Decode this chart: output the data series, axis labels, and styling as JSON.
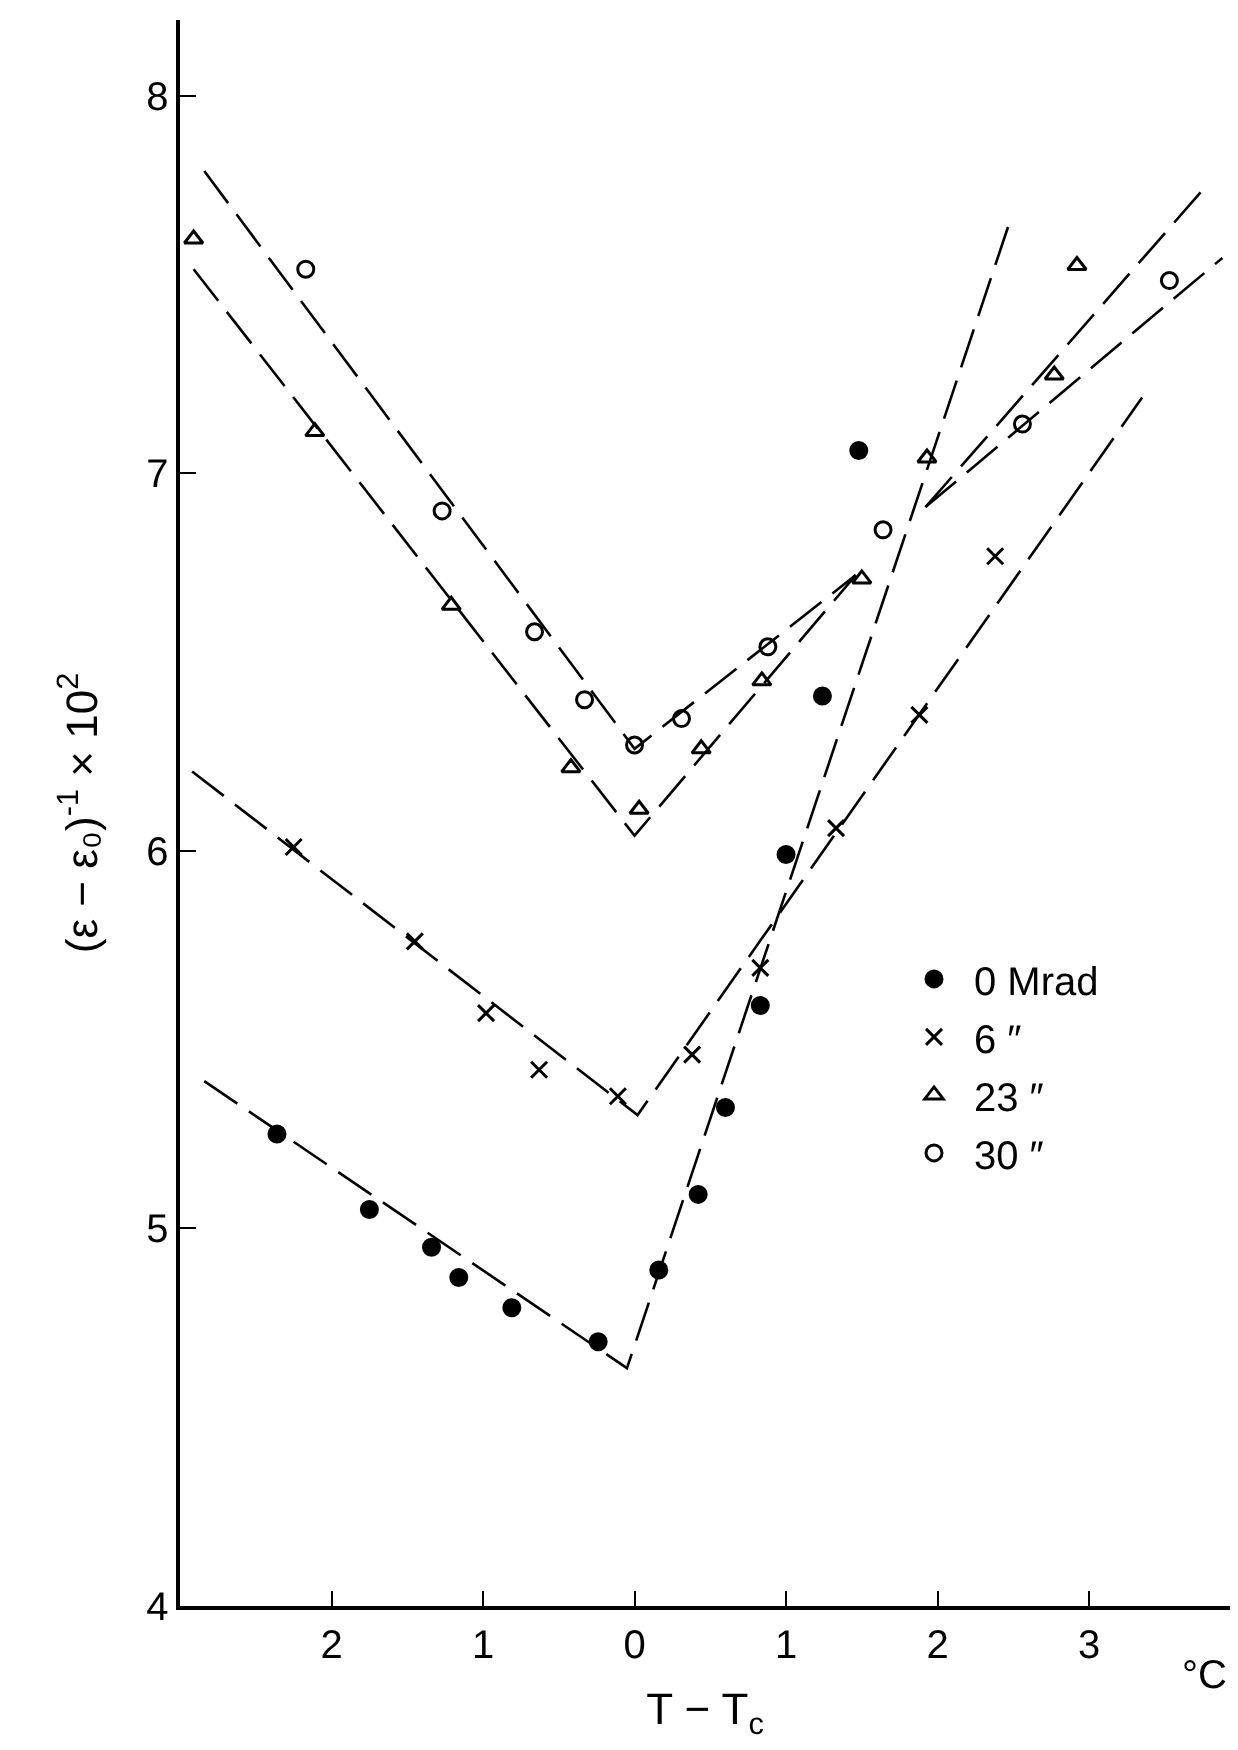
{
  "chart_data": {
    "type": "scatter",
    "xlabel": "T − T$_{c}$",
    "ylabel": "(ε − ε₀)$^{-1}$ × 10$^{2}$",
    "xlim": [
      -3.0,
      3.93
    ],
    "xticks": [
      {
        "value": -2,
        "label": "2"
      },
      {
        "value": -1,
        "label": "1"
      },
      0,
      1,
      2,
      3
    ],
    "ylim": [
      4,
      8.2
    ],
    "yticks": [
      4,
      5,
      6,
      7,
      8
    ],
    "grid": false,
    "legend": "right",
    "line_style": "dashed",
    "annotations": [
      "°C"
    ],
    "series": [
      {
        "name": "0 Mrad",
        "color": "#000000",
        "marker": "circle",
        "x": [
          -2.36,
          -1.75,
          -1.34,
          -1.16,
          -0.81,
          -0.24,
          0.16,
          0.42,
          0.6,
          0.83,
          1.0,
          1.24,
          1.48
        ],
        "values": [
          5.25,
          5.05,
          4.95,
          4.87,
          4.79,
          4.7,
          4.89,
          5.09,
          5.32,
          5.59,
          5.99,
          6.41,
          7.06
        ]
      },
      {
        "name": "6 ″",
        "color": "#000000",
        "marker": "cross",
        "x": [
          -2.25,
          -1.45,
          -0.98,
          -0.63,
          -0.11,
          0.38,
          0.83,
          1.33,
          1.88,
          2.38
        ],
        "values": [
          6.01,
          5.76,
          5.57,
          5.42,
          5.35,
          5.46,
          5.69,
          6.06,
          6.36,
          6.78
        ]
      },
      {
        "name": "23 ″",
        "color": "#000000",
        "marker": "triangle-open",
        "x": [
          -2.91,
          -2.11,
          -1.21,
          -0.42,
          0.03,
          0.44,
          0.84,
          1.5,
          1.93,
          2.77,
          2.92
        ],
        "values": [
          7.62,
          7.11,
          6.65,
          6.22,
          6.11,
          6.27,
          6.45,
          6.72,
          7.04,
          7.26,
          7.55
        ]
      },
      {
        "name": "30 ″",
        "color": "#000000",
        "marker": "circle-open",
        "x": [
          -2.17,
          -1.27,
          -0.66,
          -0.33,
          0.0,
          0.31,
          0.88,
          1.64,
          2.56,
          3.53
        ],
        "values": [
          7.54,
          6.9,
          6.58,
          6.4,
          6.28,
          6.35,
          6.54,
          6.85,
          7.13,
          7.51
        ]
      },
      {
        "type": "line",
        "color": "#000000",
        "x": [
          -2.84,
          -0.05,
          2.48
        ],
        "values": [
          5.39,
          4.63,
          7.67
        ]
      },
      {
        "type": "line",
        "color": "#000000",
        "x": [
          -2.92,
          0.02,
          3.35
        ],
        "values": [
          6.21,
          5.3,
          7.2
        ]
      },
      {
        "type": "line",
        "color": "#000000",
        "x": [
          -2.91,
          0.0,
          1.46,
          null,
          1.92,
          3.75
        ],
        "values": [
          7.54,
          6.04,
          6.73,
          null,
          6.91,
          7.75
        ]
      },
      {
        "type": "line",
        "color": "#000000",
        "x": [
          -2.84,
          0.0,
          1.46,
          null,
          1.92,
          3.88
        ],
        "values": [
          7.8,
          6.27,
          6.73,
          null,
          6.91,
          7.57
        ]
      }
    ]
  }
}
